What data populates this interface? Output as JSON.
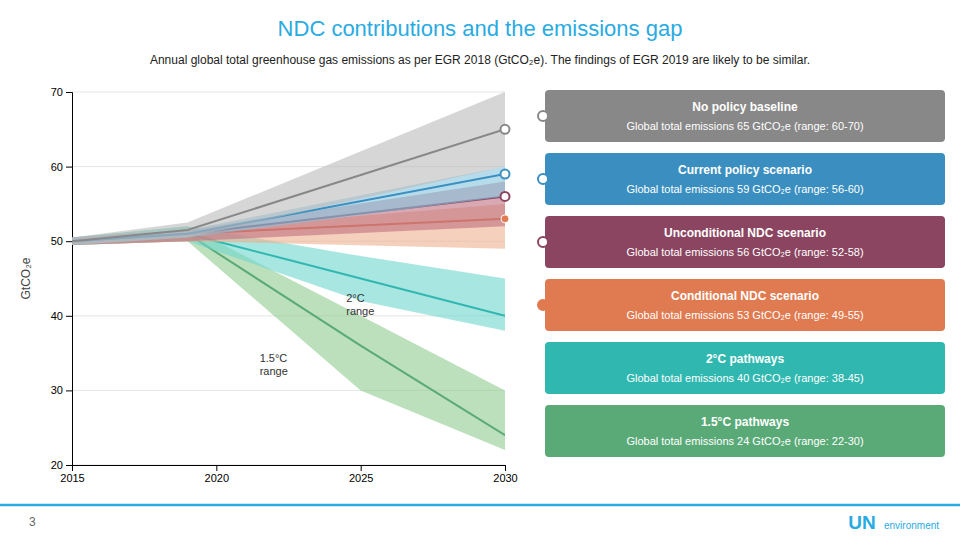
{
  "chart_data": {
    "type": "line",
    "title": "NDC contributions and the emissions gap",
    "subtitle": "Annual global total greenhouse gas emissions as per EGR 2018 (GtCO₂e). The findings of EGR 2019 are likely to be similar.",
    "color": "#29ABE2",
    "y_label": "GtCO₂e",
    "xlim": [
      2015,
      2030
    ],
    "ylim": [
      20,
      70
    ],
    "xticks": [
      2015,
      2020,
      2025,
      2030
    ],
    "yticks": [
      20,
      30,
      40,
      50,
      60,
      70
    ],
    "grid": true,
    "legend": "right",
    "series": [
      {
        "name": "No policy baseline",
        "description": "Global total emissions 65 GtCO₂e (range: 60-70)",
        "color": "#888888",
        "band_color": "#BBBBBB",
        "x": [
          2015,
          2019,
          2030
        ],
        "values": [
          50.0,
          51.5,
          65.0
        ],
        "band_lo": [
          49.5,
          50.5,
          60.0
        ],
        "band_hi": [
          50.5,
          52.5,
          70.0
        ],
        "marker": "circle-open",
        "marker_value": 65.0
      },
      {
        "name": "Current policy scenario",
        "description": "Global total emissions 59 GtCO₂e (range: 56-60)",
        "color": "#3A8FC0",
        "band_color": "#85C5DE",
        "x": [
          2015,
          2019,
          2030
        ],
        "values": [
          50.0,
          51.0,
          59.0
        ],
        "band_lo": [
          49.5,
          50.5,
          56.0
        ],
        "band_hi": [
          50.5,
          51.5,
          60.0
        ],
        "marker": "circle-open",
        "marker_value": 59.0
      },
      {
        "name": "Unconditional NDC scenario",
        "description": "Global total emissions 56 GtCO₂e (range: 52-58)",
        "color": "#8B4560",
        "band_color": "#C07080",
        "x": [
          2015,
          2019,
          2030
        ],
        "values": [
          50.0,
          51.0,
          56.0
        ],
        "band_lo": [
          49.5,
          50.0,
          52.0
        ],
        "band_hi": [
          50.5,
          51.5,
          58.0
        ],
        "marker": "circle-open",
        "marker_value": 56.0
      },
      {
        "name": "Conditional NDC scenario",
        "description": "Global total emissions 53 GtCO₂e (range: 49-55)",
        "color": "#E07A50",
        "band_color": "#EFB090",
        "x": [
          2015,
          2019,
          2030
        ],
        "values": [
          50.0,
          51.0,
          53.0
        ],
        "band_lo": [
          49.5,
          50.0,
          49.0
        ],
        "band_hi": [
          50.5,
          51.5,
          55.0
        ],
        "marker": "circle",
        "marker_value": 53.0
      },
      {
        "name": "2°C pathways",
        "description": "Global total emissions 40 GtCO₂e (range: 38-45)",
        "color": "#30B8B0",
        "band_color": "#6ED5CF",
        "x": [
          2015,
          2019,
          2025,
          2030
        ],
        "values": [
          50.0,
          51.0,
          45.0,
          40.0
        ],
        "band_lo": [
          49.5,
          50.0,
          42.0,
          38.0
        ],
        "band_hi": [
          50.5,
          52.0,
          48.0,
          45.0
        ]
      },
      {
        "name": "1.5°C pathways",
        "description": "Global total emissions 24 GtCO₂e (range: 22-30)",
        "color": "#5AAA78",
        "band_color": "#8FCC90",
        "x": [
          2015,
          2019,
          2025,
          2030
        ],
        "values": [
          50.0,
          51.0,
          36.0,
          24.0
        ],
        "band_lo": [
          49.5,
          50.0,
          30.0,
          22.0
        ],
        "band_hi": [
          50.5,
          52.0,
          40.0,
          30.0
        ]
      }
    ],
    "annotations": [
      {
        "text": "2°C\nrange",
        "x": 2024.5,
        "y": 41.5
      },
      {
        "text": "1.5°C\nrange",
        "x": 2021.5,
        "y": 33.5
      },
      {
        "text": "3"
      },
      {
        "text": "UN"
      },
      {
        "text": "environment"
      }
    ]
  }
}
